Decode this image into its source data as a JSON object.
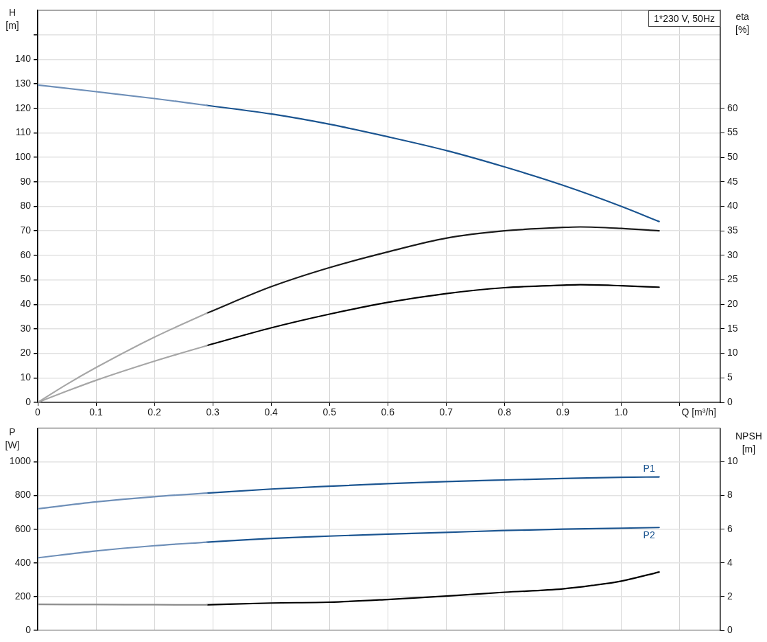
{
  "chart_data": [
    {
      "type": "line",
      "title": "1*230 V, 50Hz",
      "xlabel": "Q [m³/h]",
      "ylabel": "H [m]",
      "y2label": "eta [%]",
      "xlim": [
        0,
        1.17
      ],
      "xticks": [
        0,
        0.1,
        0.2,
        0.3,
        0.4,
        0.5,
        0.6,
        0.7,
        0.8,
        0.9,
        {
          "value": 1,
          "label": "1.0"
        },
        {
          "value": 1.1,
          "label": null
        }
      ],
      "ylim": [
        0,
        160
      ],
      "yticks": [
        0,
        10,
        20,
        30,
        40,
        50,
        60,
        70,
        80,
        90,
        100,
        110,
        120,
        130,
        140,
        {
          "value": 150,
          "label": null
        }
      ],
      "y2lim": [
        0,
        80
      ],
      "y2ticks": [
        0,
        5,
        10,
        15,
        20,
        25,
        30,
        35,
        40,
        45,
        50,
        55,
        60
      ],
      "grid": true,
      "series": [
        {
          "color": "#6e8fb8",
          "x": [
            0,
            0.1,
            0.2,
            0.29
          ],
          "values": [
            129.5,
            126.8,
            124,
            121.2
          ]
        },
        {
          "color": "#1a5490",
          "x": [
            0.29,
            0.4,
            0.5,
            0.6,
            0.7,
            0.8,
            0.9,
            1.0,
            1.065
          ],
          "values": [
            121.2,
            117.7,
            113.5,
            108.4,
            102.8,
            96.1,
            88.6,
            80,
            73.8
          ]
        },
        {
          "color": "#a6a6a6",
          "axis": "y2",
          "x": [
            0,
            0.05,
            0.1,
            0.2,
            0.29
          ],
          "values": [
            0,
            3.7,
            7.1,
            13.3,
            18.2
          ]
        },
        {
          "color": "#1a1a1a",
          "axis": "y2",
          "x": [
            0.29,
            0.4,
            0.5,
            0.6,
            0.7,
            0.8,
            0.9,
            0.93,
            1.0,
            1.065
          ],
          "values": [
            18.2,
            23.6,
            27.5,
            30.7,
            33.5,
            35,
            35.7,
            35.8,
            35.5,
            35
          ]
        },
        {
          "color": "#a6a6a6",
          "axis": "y2",
          "x": [
            0,
            0.05,
            0.1,
            0.2,
            0.29
          ],
          "values": [
            0,
            2.3,
            4.5,
            8.4,
            11.6
          ]
        },
        {
          "color": "#000000",
          "axis": "y2",
          "x": [
            0.29,
            0.4,
            0.5,
            0.6,
            0.7,
            0.8,
            0.9,
            0.93,
            1.0,
            1.065
          ],
          "values": [
            11.6,
            15.2,
            18,
            20.4,
            22.2,
            23.4,
            23.9,
            24,
            23.8,
            23.5
          ]
        }
      ]
    },
    {
      "type": "line",
      "ylabel": "P [W]",
      "y2label": "NPSH [m]",
      "tick_labels": "y",
      "xlim": [
        0,
        1.17
      ],
      "xticks": [
        0,
        0.1,
        0.2,
        0.3,
        0.4,
        0.5,
        0.6,
        0.7,
        0.8,
        0.9,
        1,
        1.1
      ],
      "ylim": [
        0,
        1200
      ],
      "yticks": [
        0,
        200,
        400,
        600,
        800,
        1000
      ],
      "y2lim": [
        0,
        12
      ],
      "y2ticks": [
        0,
        2,
        4,
        6,
        8,
        10
      ],
      "grid": true,
      "series": [
        {
          "color": "#6e8fb8",
          "x": [
            0,
            0.1,
            0.2,
            0.29
          ],
          "values": [
            721,
            762,
            793,
            814
          ]
        },
        {
          "name": "P1",
          "color": "#1a5490",
          "x": [
            0.29,
            0.4,
            0.5,
            0.6,
            0.7,
            0.8,
            0.9,
            1.0,
            1.065
          ],
          "values": [
            814,
            838,
            855,
            870,
            882,
            892,
            901,
            908,
            910
          ]
        },
        {
          "color": "#6e8fb8",
          "x": [
            0,
            0.1,
            0.2,
            0.29
          ],
          "values": [
            430,
            471,
            502,
            523
          ]
        },
        {
          "name": "P2",
          "color": "#1a5490",
          "x": [
            0.29,
            0.4,
            0.5,
            0.6,
            0.7,
            0.8,
            0.9,
            1.0,
            1.065
          ],
          "values": [
            523,
            545,
            559,
            571,
            581,
            592,
            600,
            606,
            610
          ]
        },
        {
          "color": "#8c8c8c",
          "axis": "y2",
          "x": [
            0,
            0.1,
            0.2,
            0.29
          ],
          "values": [
            1.54,
            1.53,
            1.52,
            1.51
          ]
        },
        {
          "color": "#000000",
          "axis": "y2",
          "x": [
            0.29,
            0.4,
            0.5,
            0.6,
            0.7,
            0.8,
            0.9,
            0.95,
            1.0,
            1.065
          ],
          "values": [
            1.51,
            1.62,
            1.67,
            1.83,
            2.03,
            2.26,
            2.46,
            2.66,
            2.92,
            3.46
          ]
        }
      ]
    }
  ]
}
